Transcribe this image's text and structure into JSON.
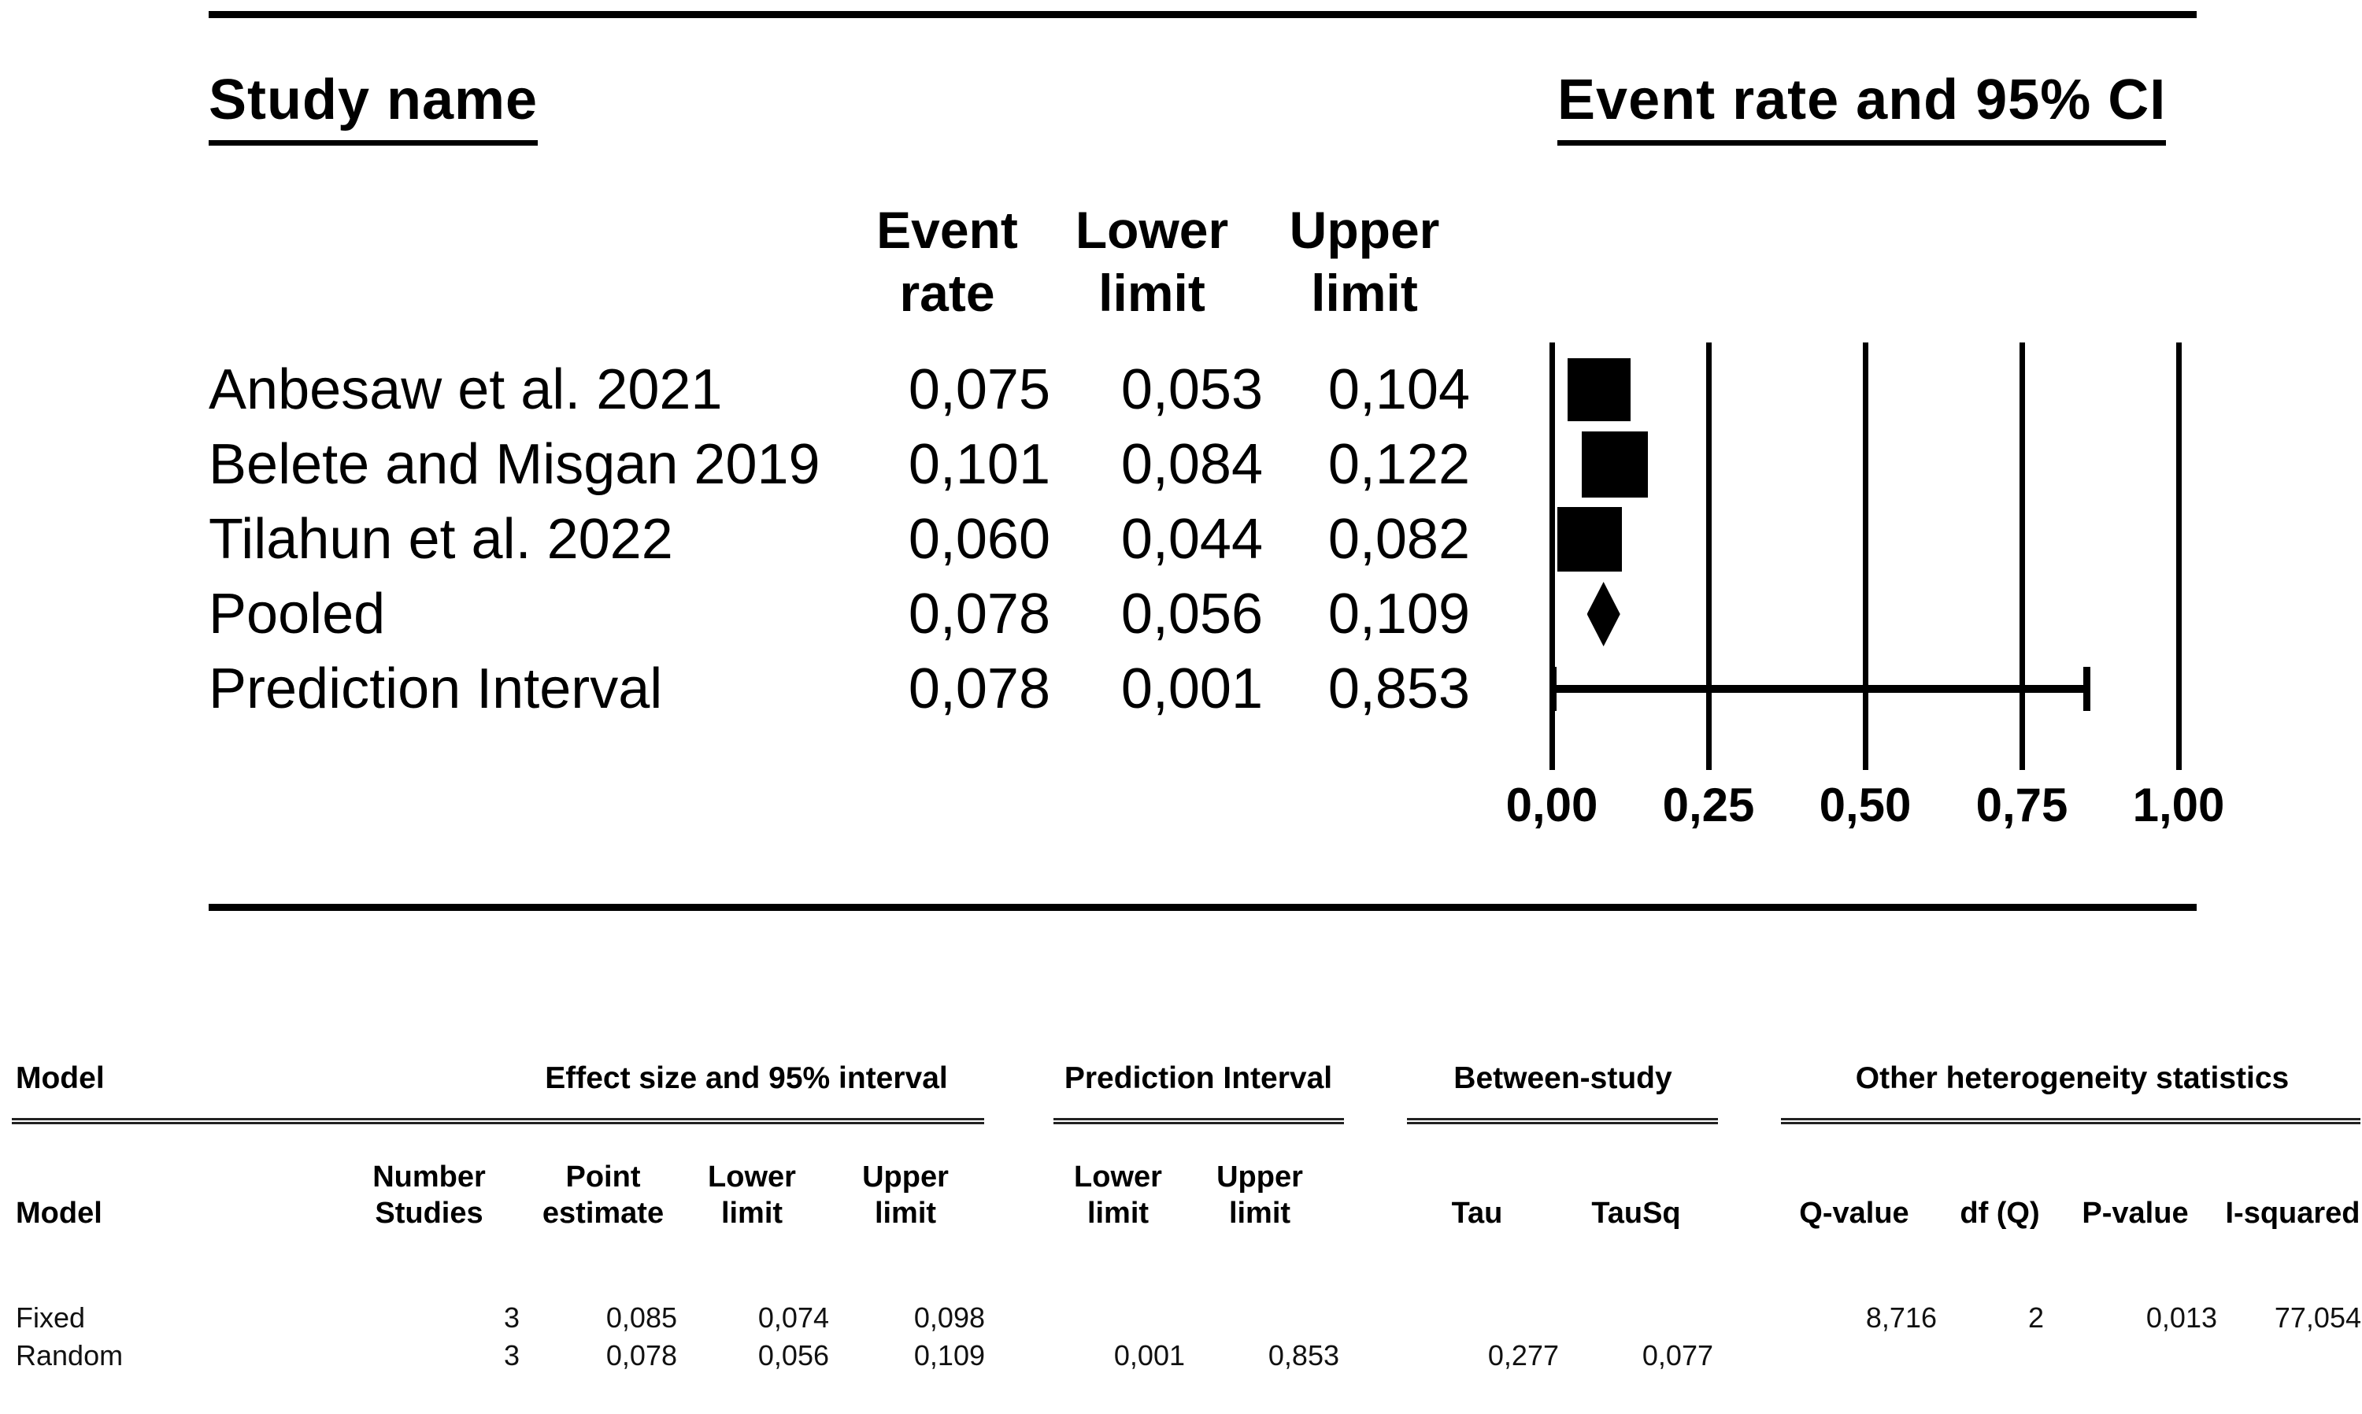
{
  "figure": {
    "left_title": "Study name",
    "right_title": "Event rate and 95% CI"
  },
  "columns": {
    "event_rate_line1": "Event",
    "event_rate_line2": "rate",
    "lower_line1": "Lower",
    "lower_line2": "limit",
    "upper_line1": "Upper",
    "upper_line2": "limit"
  },
  "rows": [
    {
      "label": "Anbesaw et al. 2021",
      "event_rate": "0,075",
      "lower": "0,053",
      "upper": "0,104"
    },
    {
      "label": "Belete and Misgan 2019",
      "event_rate": "0,101",
      "lower": "0,084",
      "upper": "0,122"
    },
    {
      "label": "Tilahun et al. 2022",
      "event_rate": "0,060",
      "lower": "0,044",
      "upper": "0,082"
    },
    {
      "label": "Pooled",
      "event_rate": "0,078",
      "lower": "0,056",
      "upper": "0,109"
    },
    {
      "label": "Prediction Interval",
      "event_rate": "0,078",
      "lower": "0,001",
      "upper": "0,853"
    }
  ],
  "axis": {
    "tick_labels": [
      "0,00",
      "0,25",
      "0,50",
      "0,75",
      "1,00"
    ]
  },
  "stats_table": {
    "group_headers": {
      "model": "Model",
      "effect": "Effect size and 95% interval",
      "prediction": "Prediction Interval",
      "between": "Between-study",
      "other": "Other heterogeneity statistics"
    },
    "sub_headers": {
      "model": "Model",
      "number_line1": "Number",
      "number_line2": "Studies",
      "point_line1": "Point",
      "point_line2": "estimate",
      "lower_line1": "Lower",
      "lower_line2": "limit",
      "upper_line1": "Upper",
      "upper_line2": "limit",
      "pi_lower_line1": "Lower",
      "pi_lower_line2": "limit",
      "pi_upper_line1": "Upper",
      "pi_upper_line2": "limit",
      "tau": "Tau",
      "tausq": "TauSq",
      "q": "Q-value",
      "df": "df (Q)",
      "p": "P-value",
      "isq": "I-squared"
    },
    "fixed_row": {
      "model": "Fixed",
      "n": "3",
      "point": "0,085",
      "lower": "0,074",
      "upper": "0,098",
      "q": "8,716",
      "df": "2",
      "p": "0,013",
      "isq": "77,054"
    },
    "random_row": {
      "model": "Random",
      "n": "3",
      "point": "0,078",
      "lower": "0,056",
      "upper": "0,109",
      "pi_lower": "0,001",
      "pi_upper": "0,853",
      "tau": "0,277",
      "tausq": "0,077"
    }
  },
  "colors": {
    "ink": "#000000",
    "background": "#ffffff"
  },
  "chart_data": {
    "type": "forest",
    "title": "Event rate and 95% CI",
    "x_axis": {
      "range": [
        0,
        1
      ],
      "ticks": [
        0,
        0.25,
        0.5,
        0.75,
        1.0
      ],
      "decimal_style": "comma"
    },
    "grid": true,
    "studies": [
      {
        "name": "Anbesaw et al. 2021",
        "event_rate": 0.075,
        "ci_lower": 0.053,
        "ci_upper": 0.104,
        "marker": "square"
      },
      {
        "name": "Belete and Misgan 2019",
        "event_rate": 0.101,
        "ci_lower": 0.084,
        "ci_upper": 0.122,
        "marker": "square"
      },
      {
        "name": "Tilahun et al. 2022",
        "event_rate": 0.06,
        "ci_lower": 0.044,
        "ci_upper": 0.082,
        "marker": "square"
      },
      {
        "name": "Pooled",
        "event_rate": 0.078,
        "ci_lower": 0.056,
        "ci_upper": 0.109,
        "marker": "diamond"
      },
      {
        "name": "Prediction Interval",
        "event_rate": 0.078,
        "ci_lower": 0.001,
        "ci_upper": 0.853,
        "marker": "interval_line"
      }
    ],
    "model_statistics": {
      "fixed": {
        "number_studies": 3,
        "point_estimate": 0.085,
        "lower_limit": 0.074,
        "upper_limit": 0.098,
        "q_value": 8.716,
        "df_q": 2,
        "p_value": 0.013,
        "i_squared": 77.054
      },
      "random": {
        "number_studies": 3,
        "point_estimate": 0.078,
        "lower_limit": 0.056,
        "upper_limit": 0.109,
        "prediction_lower": 0.001,
        "prediction_upper": 0.853,
        "tau": 0.277,
        "tau_sq": 0.077
      }
    }
  }
}
